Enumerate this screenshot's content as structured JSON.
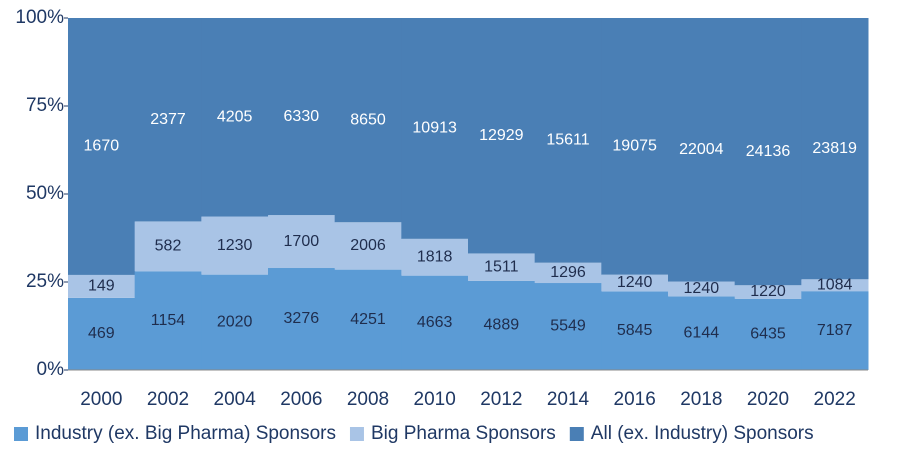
{
  "chart_data": {
    "type": "stacked-percent-area",
    "categories": [
      "2000",
      "2002",
      "2004",
      "2006",
      "2008",
      "2010",
      "2012",
      "2014",
      "2016",
      "2018",
      "2020",
      "2022"
    ],
    "series": [
      {
        "name": "Industry (ex. Big Pharma) Sponsors",
        "color": "#5b9bd5",
        "label_color": "#1f2d4d",
        "values": [
          469,
          1154,
          2020,
          3276,
          4251,
          4663,
          4889,
          5549,
          5845,
          6144,
          6435,
          7187
        ]
      },
      {
        "name": "Big Pharma Sponsors",
        "color": "#a9c4e6",
        "label_color": "#1f2d4d",
        "values": [
          149,
          582,
          1230,
          1700,
          2006,
          1818,
          1511,
          1296,
          1240,
          1240,
          1220,
          1084
        ]
      },
      {
        "name": "All (ex. Industry) Sponsors",
        "color": "#4a7fb5",
        "label_color": "#ffffff",
        "values": [
          1670,
          2377,
          4205,
          6330,
          8650,
          10913,
          12929,
          15611,
          19075,
          22004,
          24136,
          23819
        ]
      }
    ],
    "ylim": [
      0,
      100
    ],
    "yticks": [
      {
        "value": 0,
        "label": "0%"
      },
      {
        "value": 25,
        "label": "25%"
      },
      {
        "value": 50,
        "label": "50%"
      },
      {
        "value": 75,
        "label": "75%"
      },
      {
        "value": 100,
        "label": "100%"
      }
    ],
    "legend": "bottom"
  }
}
